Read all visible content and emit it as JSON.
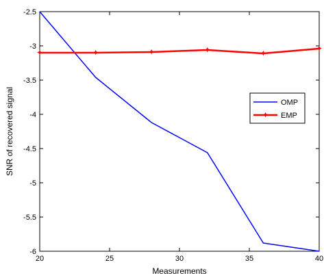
{
  "chart_data": {
    "type": "line",
    "xlabel": "Measurements",
    "ylabel": "SNR of recovered signal",
    "xlim": [
      20,
      40
    ],
    "ylim": [
      -6,
      -2.5
    ],
    "x_ticks": [
      20,
      25,
      30,
      35,
      40
    ],
    "x_tick_labels": [
      "20",
      "25",
      "30",
      "35",
      "40"
    ],
    "y_ticks": [
      -2.5,
      -3,
      -3.5,
      -4,
      -4.5,
      -5,
      -5.5,
      -6
    ],
    "y_tick_labels": [
      "-2.5",
      "-3",
      "-3.5",
      "-4",
      "-4.5",
      "-5",
      "-5.5",
      "-6"
    ],
    "grid": false,
    "legend_position": "right",
    "series": [
      {
        "name": "OMP",
        "color": "#0000ff",
        "marker": "none",
        "x": [
          20,
          24,
          28,
          32,
          36,
          40
        ],
        "y": [
          -2.5,
          -3.46,
          -4.12,
          -4.56,
          -5.88,
          -6.0
        ]
      },
      {
        "name": "EMP",
        "color": "#ff0000",
        "marker": "star",
        "x": [
          20,
          24,
          28,
          32,
          36,
          40
        ],
        "y": [
          -3.1,
          -3.1,
          -3.09,
          -3.06,
          -3.11,
          -3.04
        ]
      }
    ]
  }
}
